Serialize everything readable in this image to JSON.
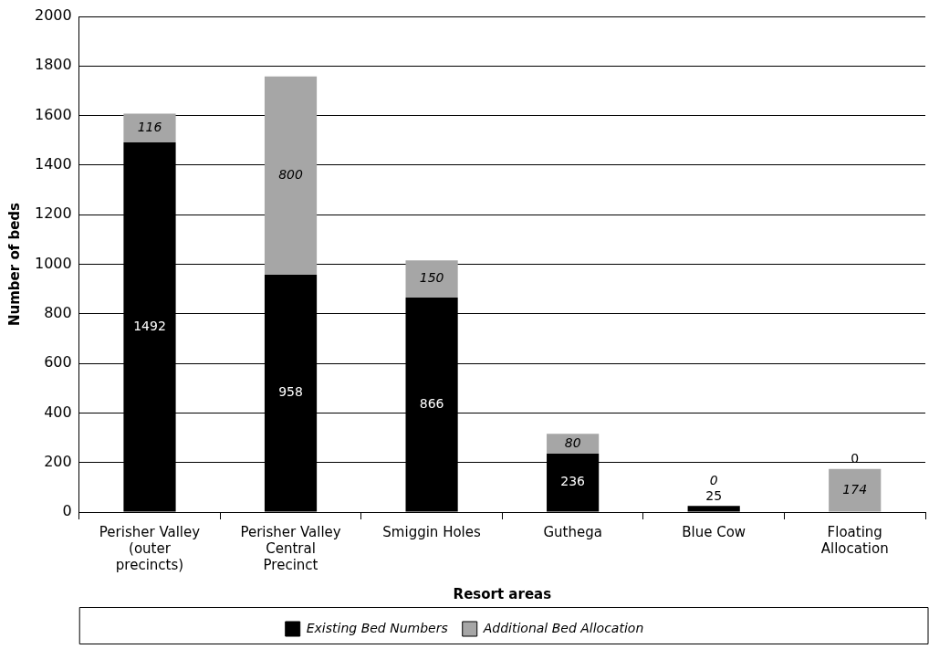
{
  "chart_data": {
    "type": "bar",
    "stacked": true,
    "xlabel": "Resort areas",
    "ylabel": "Number of beds",
    "categories": [
      "Perisher Valley (outer precincts)",
      "Perisher Valley Central Precinct",
      "Smiggin Holes",
      "Guthega",
      "Blue Cow",
      "Floating Allocation"
    ],
    "series": [
      {
        "name": "Existing Bed Numbers",
        "color": "#000000",
        "values": [
          1492,
          958,
          866,
          236,
          25,
          0
        ]
      },
      {
        "name": "Additional Bed Allocation",
        "color": "#a6a6a6",
        "values": [
          116,
          800,
          150,
          80,
          0,
          174
        ]
      }
    ],
    "ylim": [
      0,
      2000
    ],
    "yticks": [
      0,
      200,
      400,
      600,
      800,
      1000,
      1200,
      1400,
      1600,
      1800,
      2000
    ],
    "grid": "y",
    "legend": "bottom",
    "data_labels": true
  }
}
